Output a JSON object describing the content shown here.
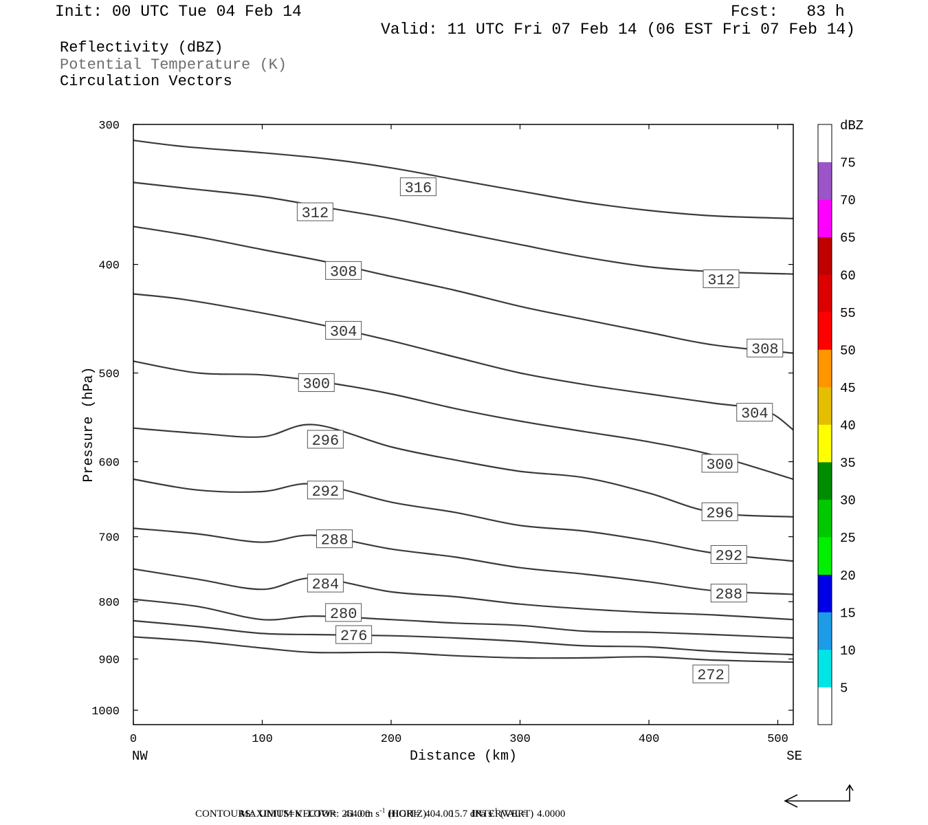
{
  "header": {
    "init": "Init: 00 UTC Tue 04 Feb 14",
    "fcst": "Fcst:   83 h",
    "valid": "Valid: 11 UTC Fri 07 Feb 14 (06 EST Fri 07 Feb 14)"
  },
  "legend": {
    "line1": "Reflectivity (dBZ)",
    "line2": "Potential Temperature (K)",
    "line3": "Circulation Vectors"
  },
  "colors": {
    "contour": "#3a3a3a",
    "potential_temp_label": "#6e6e6e"
  },
  "chart_data": {
    "type": "cross-section",
    "xlabel": "Distance (km)",
    "ylabel": "Pressure (hPa)",
    "xlim": [
      0,
      512
    ],
    "ylim": [
      1030,
      300
    ],
    "yscale": "log-pressure",
    "x_ticks": [
      0,
      100,
      200,
      300,
      400,
      500
    ],
    "y_ticks": [
      300,
      400,
      500,
      600,
      700,
      800,
      900,
      1000
    ],
    "x_end_labels": [
      "NW",
      "SE"
    ],
    "colorbar": {
      "title": "dBZ",
      "levels": [
        5,
        10,
        15,
        20,
        25,
        30,
        35,
        40,
        45,
        50,
        55,
        60,
        65,
        70,
        75
      ],
      "colors": [
        "#ffffff",
        "#00e6e6",
        "#1e9be6",
        "#0000e6",
        "#00f000",
        "#00c800",
        "#008c00",
        "#ffff00",
        "#e6be00",
        "#ff9600",
        "#ff0000",
        "#dc0000",
        "#be0000",
        "#ff00ff",
        "#9b55c8",
        "#ffffff"
      ]
    },
    "contours": [
      {
        "label": "316",
        "points": [
          [
            0,
            310
          ],
          [
            40,
            314
          ],
          [
            100,
            318
          ],
          [
            150,
            322
          ],
          [
            200,
            328
          ],
          [
            250,
            336
          ],
          [
            300,
            344
          ],
          [
            350,
            352
          ],
          [
            400,
            358
          ],
          [
            450,
            362
          ],
          [
            512,
            364
          ]
        ],
        "labels_at": [
          [
            221,
            341
          ]
        ]
      },
      {
        "label": "312",
        "points": [
          [
            0,
            338
          ],
          [
            40,
            342
          ],
          [
            100,
            348
          ],
          [
            150,
            356
          ],
          [
            200,
            364
          ],
          [
            250,
            374
          ],
          [
            300,
            384
          ],
          [
            350,
            394
          ],
          [
            400,
            402
          ],
          [
            450,
            406
          ],
          [
            512,
            408
          ]
        ],
        "labels_at": [
          [
            141,
            359
          ],
          [
            456,
            412
          ]
        ]
      },
      {
        "label": "308",
        "points": [
          [
            0,
            370
          ],
          [
            50,
            378
          ],
          [
            100,
            388
          ],
          [
            150,
            398
          ],
          [
            200,
            410
          ],
          [
            250,
            422
          ],
          [
            300,
            436
          ],
          [
            350,
            448
          ],
          [
            400,
            460
          ],
          [
            450,
            472
          ],
          [
            512,
            480
          ]
        ],
        "labels_at": [
          [
            163,
            405
          ],
          [
            490,
            475
          ]
        ]
      },
      {
        "label": "304",
        "points": [
          [
            0,
            425
          ],
          [
            40,
            430
          ],
          [
            100,
            442
          ],
          [
            150,
            454
          ],
          [
            200,
            468
          ],
          [
            250,
            484
          ],
          [
            300,
            500
          ],
          [
            350,
            512
          ],
          [
            400,
            522
          ],
          [
            450,
            532
          ],
          [
            490,
            540
          ],
          [
            512,
            562
          ]
        ],
        "labels_at": [
          [
            163,
            458
          ],
          [
            482,
            542
          ]
        ]
      },
      {
        "label": "300",
        "points": [
          [
            0,
            488
          ],
          [
            50,
            500
          ],
          [
            100,
            502
          ],
          [
            150,
            510
          ],
          [
            200,
            522
          ],
          [
            250,
            538
          ],
          [
            300,
            552
          ],
          [
            350,
            564
          ],
          [
            400,
            576
          ],
          [
            450,
            592
          ],
          [
            512,
            622
          ]
        ],
        "labels_at": [
          [
            142,
            510
          ],
          [
            455,
            602
          ]
        ]
      },
      {
        "label": "296",
        "points": [
          [
            0,
            560
          ],
          [
            50,
            566
          ],
          [
            100,
            570
          ],
          [
            140,
            556
          ],
          [
            200,
            582
          ],
          [
            250,
            598
          ],
          [
            300,
            612
          ],
          [
            350,
            620
          ],
          [
            400,
            640
          ],
          [
            450,
            666
          ],
          [
            512,
            672
          ]
        ],
        "labels_at": [
          [
            149,
            573
          ],
          [
            455,
            665
          ]
        ]
      },
      {
        "label": "292",
        "points": [
          [
            0,
            622
          ],
          [
            50,
            636
          ],
          [
            100,
            638
          ],
          [
            140,
            628
          ],
          [
            200,
            652
          ],
          [
            250,
            666
          ],
          [
            300,
            684
          ],
          [
            350,
            692
          ],
          [
            400,
            706
          ],
          [
            450,
            724
          ],
          [
            512,
            736
          ]
        ],
        "labels_at": [
          [
            149,
            636
          ],
          [
            462,
            726
          ]
        ]
      },
      {
        "label": "288",
        "points": [
          [
            0,
            688
          ],
          [
            50,
            696
          ],
          [
            100,
            708
          ],
          [
            140,
            698
          ],
          [
            200,
            718
          ],
          [
            250,
            730
          ],
          [
            300,
            746
          ],
          [
            350,
            756
          ],
          [
            400,
            768
          ],
          [
            450,
            782
          ],
          [
            512,
            788
          ]
        ],
        "labels_at": [
          [
            156,
            703
          ],
          [
            462,
            786
          ]
        ]
      },
      {
        "label": "284",
        "points": [
          [
            0,
            748
          ],
          [
            50,
            764
          ],
          [
            100,
            780
          ],
          [
            140,
            762
          ],
          [
            200,
            784
          ],
          [
            250,
            792
          ],
          [
            300,
            804
          ],
          [
            350,
            812
          ],
          [
            400,
            818
          ],
          [
            450,
            822
          ],
          [
            512,
            830
          ]
        ],
        "labels_at": [
          [
            149,
            770
          ]
        ]
      },
      {
        "label": "280",
        "points": [
          [
            0,
            796
          ],
          [
            50,
            808
          ],
          [
            100,
            830
          ],
          [
            140,
            824
          ],
          [
            200,
            830
          ],
          [
            250,
            836
          ],
          [
            300,
            840
          ],
          [
            350,
            850
          ],
          [
            400,
            852
          ],
          [
            450,
            856
          ],
          [
            512,
            862
          ]
        ],
        "labels_at": [
          [
            163,
            818
          ]
        ]
      },
      {
        "label": "276",
        "points": [
          [
            0,
            832
          ],
          [
            50,
            842
          ],
          [
            100,
            854
          ],
          [
            140,
            856
          ],
          [
            200,
            858
          ],
          [
            250,
            862
          ],
          [
            300,
            868
          ],
          [
            350,
            876
          ],
          [
            400,
            878
          ],
          [
            450,
            886
          ],
          [
            512,
            892
          ]
        ],
        "labels_at": [
          [
            171,
            856
          ]
        ]
      },
      {
        "label": "272",
        "points": [
          [
            0,
            860
          ],
          [
            50,
            868
          ],
          [
            100,
            880
          ],
          [
            140,
            888
          ],
          [
            200,
            888
          ],
          [
            250,
            894
          ],
          [
            300,
            898
          ],
          [
            350,
            898
          ],
          [
            400,
            896
          ],
          [
            450,
            902
          ],
          [
            512,
            906
          ]
        ],
        "labels_at": [
          [
            448,
            928
          ]
        ]
      }
    ],
    "vectors": []
  },
  "footer": {
    "line1_label": "MAXIMUM VECTOR:",
    "line1_value": "41.0 m s",
    "line1_horiz": "(HORIZ)",
    "line1_vert_value": "15.7 dPa s",
    "line1_vert": "(VERT)",
    "line1_exp": "-1",
    "line2": "CONTOURS:  UNITS=K  LOW=  264.00       HIGH=  404.00       INTERVAL=    4.0000"
  }
}
